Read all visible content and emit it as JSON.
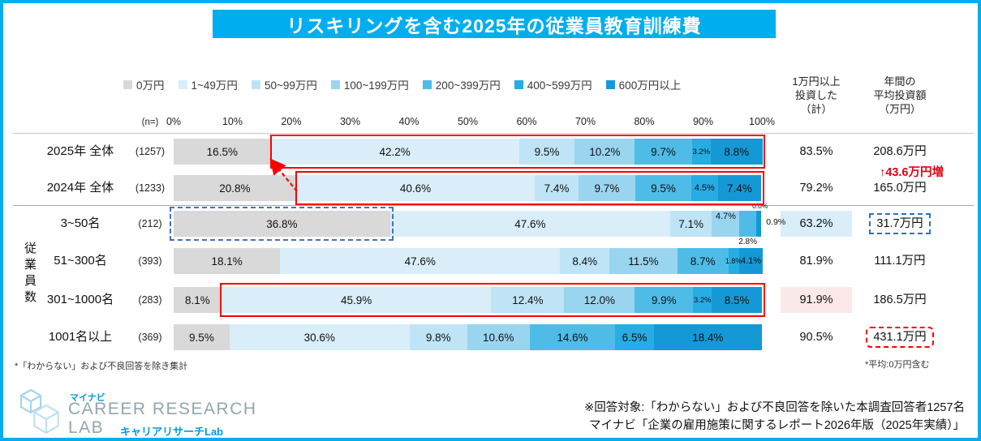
{
  "ui": {
    "title": "リスキリングを含む2025年の従業員教育訓練費",
    "n_label": "(n=)",
    "col_invested": "1万円以上\n投資した\n（計）",
    "col_average": "年間の\n平均投資額\n（万円）",
    "group_label": "従業員数",
    "increase": "↑43.6万円増",
    "note_left": "*「わからない」および不良回答を除き集計",
    "note_right": "*平均:0万円含む",
    "footer1": "※回答対象:「わからない」および不良回答を除いた本調査回答者1257名",
    "footer2": "マイナビ「企業の雇用施策に関するレポート2026年版（2025年実績）」",
    "logo": {
      "brand": "マイナビ",
      "career": "CAREER RESEARCH",
      "lab": "LAB",
      "sub": "キャリアリサーチLab"
    },
    "colors": {
      "accent": "#00AEEF",
      "highlight_red": "#FF0000",
      "highlight_blue_dash": "#2E74B5",
      "cell_blue": "#D9EEF8",
      "cell_pink": "#FBE8E8",
      "increase_text": "#E60012"
    }
  },
  "chart_data": {
    "type": "bar",
    "stacked": true,
    "orientation": "horizontal",
    "title": "リスキリングを含む2025年の従業員教育訓練費",
    "unit": "%",
    "xlim": [
      0,
      100
    ],
    "x_ticks": [
      "0%",
      "10%",
      "20%",
      "30%",
      "40%",
      "50%",
      "60%",
      "70%",
      "80%",
      "90%",
      "100%"
    ],
    "segments": [
      "0万円",
      "1~49万円",
      "50~99万円",
      "100~199万円",
      "200~399万円",
      "400~599万円",
      "600万円以上"
    ],
    "segment_colors": [
      "#D9D9D9",
      "#D9EEF9",
      "#BEE4F5",
      "#9AD5F0",
      "#4FBCE8",
      "#27ACE3",
      "#1599D6"
    ],
    "legend_position": "top",
    "rows": [
      {
        "label": "2025年 全体",
        "n": "(1257)",
        "values": [
          16.5,
          42.2,
          9.5,
          10.2,
          9.7,
          3.2,
          8.8
        ],
        "invested": "83.5%",
        "average": "208.6万円"
      },
      {
        "label": "2024年 全体",
        "n": "(1233)",
        "values": [
          20.8,
          40.6,
          7.4,
          9.7,
          9.5,
          4.5,
          7.4
        ],
        "invested": "79.2%",
        "average": "165.0万円"
      },
      {
        "label": "3~50名",
        "n": "(212)",
        "values": [
          36.8,
          47.6,
          7.1,
          4.7,
          2.8,
          0.0,
          0.9
        ],
        "invested": "63.2%",
        "average": "31.7万円"
      },
      {
        "label": "51~300名",
        "n": "(393)",
        "values": [
          18.1,
          47.6,
          8.4,
          11.5,
          8.7,
          1.8,
          4.1
        ],
        "invested": "81.9%",
        "average": "111.1万円"
      },
      {
        "label": "301~1000名",
        "n": "(283)",
        "values": [
          8.1,
          45.9,
          12.4,
          12.0,
          9.9,
          3.2,
          8.5
        ],
        "invested": "91.9%",
        "average": "186.5万円"
      },
      {
        "label": "1001名以上",
        "n": "(369)",
        "values": [
          9.5,
          30.6,
          9.8,
          10.6,
          14.6,
          6.5,
          18.4
        ],
        "invested": "90.5%",
        "average": "431.1万円"
      }
    ]
  }
}
